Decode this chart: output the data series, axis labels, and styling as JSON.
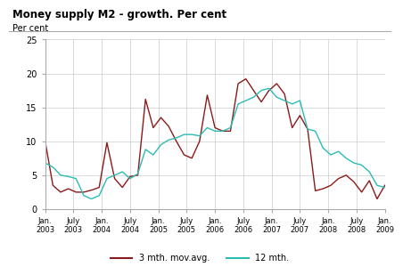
{
  "title": "Money supply M2 - growth. Per cent",
  "ylabel": "Per cent",
  "ylim": [
    0,
    25
  ],
  "yticks": [
    0,
    5,
    10,
    15,
    20,
    25
  ],
  "line1_label": "3 mth. mov.avg.",
  "line2_label": "12 mth.",
  "line1_color": "#8B1A1A",
  "line2_color": "#2ABCB4",
  "background_color": "#ffffff",
  "grid_color": "#cccccc",
  "x_tick_labels": [
    "Jan.\n2003",
    "July\n2003",
    "Jan.\n2004",
    "July\n2004",
    "Jan.\n2005",
    "July\n2005",
    "Jan.\n2006",
    "July\n2006",
    "Jan.\n2007",
    "July\n2007",
    "Jan.\n2008",
    "July\n2008",
    "Jan.\n2009"
  ],
  "series1": [
    10.0,
    3.5,
    2.5,
    3.0,
    2.5,
    2.5,
    2.8,
    3.2,
    9.8,
    4.5,
    3.2,
    4.8,
    5.0,
    16.2,
    12.0,
    13.5,
    12.2,
    10.0,
    8.0,
    7.5,
    10.0,
    16.8,
    12.0,
    11.5,
    11.5,
    18.5,
    19.2,
    17.5,
    15.8,
    17.5,
    18.5,
    17.0,
    12.0,
    13.8,
    11.8,
    2.7,
    3.0,
    3.5,
    4.5,
    5.0,
    4.0,
    2.5,
    4.2,
    1.5,
    3.5
  ],
  "series2": [
    6.8,
    6.2,
    5.0,
    4.8,
    4.5,
    2.0,
    1.5,
    2.0,
    4.5,
    5.0,
    5.5,
    4.5,
    5.2,
    8.8,
    8.0,
    9.5,
    10.2,
    10.5,
    11.0,
    11.0,
    10.8,
    12.0,
    11.5,
    11.5,
    12.0,
    15.5,
    16.0,
    16.5,
    17.5,
    17.8,
    16.5,
    16.0,
    15.5,
    16.0,
    11.8,
    11.5,
    9.0,
    8.0,
    8.5,
    7.5,
    6.8,
    6.5,
    5.5,
    3.5,
    3.2
  ]
}
